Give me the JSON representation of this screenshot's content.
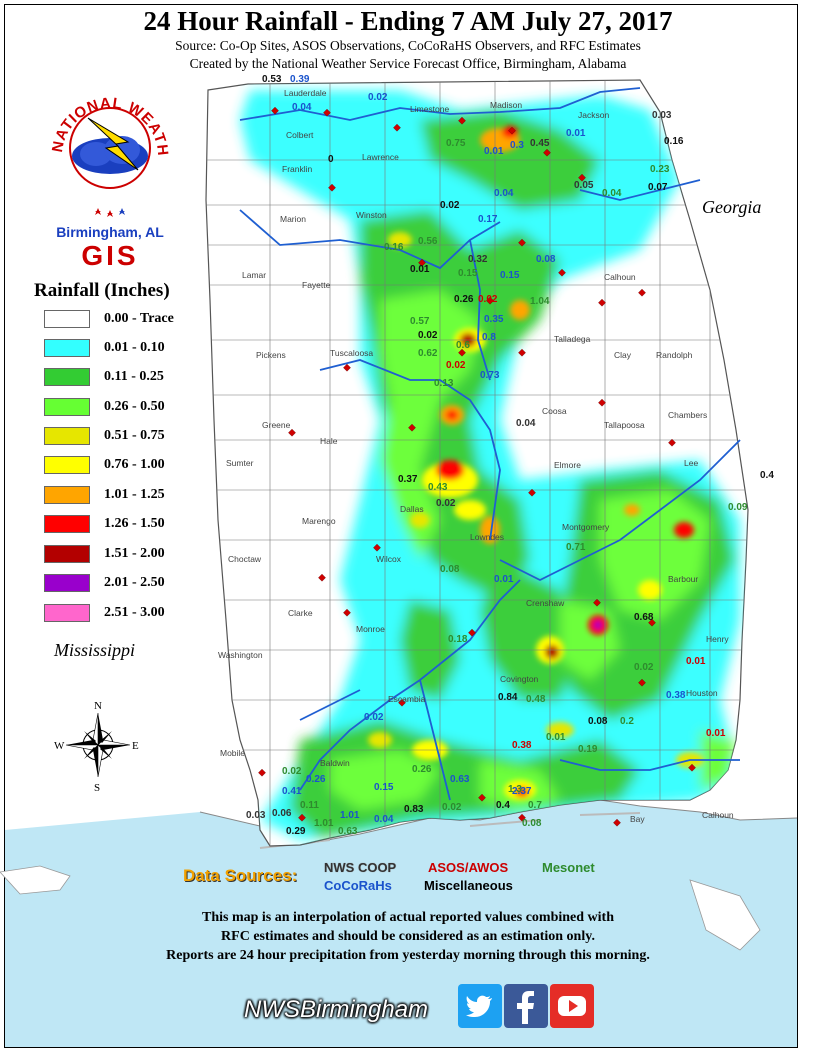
{
  "header": {
    "title": "24 Hour Rainfall - Ending 7 AM July 27, 2017",
    "source_line": "Source: Co-Op Sites, ASOS Observations, CoCoRaHS Observers, and RFC Estimates",
    "created_line": "Created by the National Weather Service Forecast Office, Birmingham, Alabama"
  },
  "logo": {
    "ring_text": "NATIONAL WEATHER SERVICE",
    "office": "Birmingham, AL",
    "gis": "GIS"
  },
  "legend": {
    "title": "Rainfall (Inches)",
    "items": [
      {
        "label": "0.00 - Trace",
        "color": "#ffffff"
      },
      {
        "label": "0.01 - 0.10",
        "color": "#33ffff"
      },
      {
        "label": "0.11 - 0.25",
        "color": "#33cc33"
      },
      {
        "label": "0.26 - 0.50",
        "color": "#66ff33"
      },
      {
        "label": "0.51 - 0.75",
        "color": "#e6e600"
      },
      {
        "label": "0.76 - 1.00",
        "color": "#ffff00"
      },
      {
        "label": "1.01 - 1.25",
        "color": "#ffa500"
      },
      {
        "label": "1.26 - 1.50",
        "color": "#ff0000"
      },
      {
        "label": "1.51 - 2.00",
        "color": "#b30000"
      },
      {
        "label": "2.01 - 2.50",
        "color": "#9900cc"
      },
      {
        "label": "2.51 - 3.00",
        "color": "#ff66cc"
      }
    ]
  },
  "map": {
    "state_labels": {
      "georgia": "Georgia",
      "mississippi": "Mississippi"
    },
    "compass": {
      "n": "N",
      "s": "S",
      "e": "E",
      "w": "W"
    },
    "counties": [
      {
        "name": "Lauderdale"
      },
      {
        "name": "Limestone"
      },
      {
        "name": "Madison"
      },
      {
        "name": "Jackson"
      },
      {
        "name": "Colbert"
      },
      {
        "name": "Lawrence"
      },
      {
        "name": "Franklin"
      },
      {
        "name": "Marion"
      },
      {
        "name": "Winston"
      },
      {
        "name": "Lamar"
      },
      {
        "name": "Fayette"
      },
      {
        "name": "Calhoun"
      },
      {
        "name": "Pickens"
      },
      {
        "name": "Tuscaloosa"
      },
      {
        "name": "Talladega"
      },
      {
        "name": "Clay"
      },
      {
        "name": "Randolph"
      },
      {
        "name": "Greene"
      },
      {
        "name": "Hale"
      },
      {
        "name": "Sumter"
      },
      {
        "name": "Coosa"
      },
      {
        "name": "Tallapoosa"
      },
      {
        "name": "Chambers"
      },
      {
        "name": "Elmore"
      },
      {
        "name": "Lee"
      },
      {
        "name": "Marengo"
      },
      {
        "name": "Choctaw"
      },
      {
        "name": "Wilcox"
      },
      {
        "name": "Montgomery"
      },
      {
        "name": "Clarke"
      },
      {
        "name": "Monroe"
      },
      {
        "name": "Crenshaw"
      },
      {
        "name": "Henry"
      },
      {
        "name": "Washington"
      },
      {
        "name": "Escambia"
      },
      {
        "name": "Covington"
      },
      {
        "name": "Houston"
      },
      {
        "name": "Mobile"
      },
      {
        "name": "Baldwin"
      },
      {
        "name": "Bay"
      },
      {
        "name": "Calhoun"
      },
      {
        "name": "Barbour"
      },
      {
        "name": "Dallas"
      },
      {
        "name": "Lowndes"
      }
    ],
    "observations": [
      {
        "v": "0.53",
        "t": "coop"
      },
      {
        "v": "0.39",
        "t": "cocorahs"
      },
      {
        "v": "0.04",
        "t": "cocorahs"
      },
      {
        "v": "0.02",
        "t": "cocorahs"
      },
      {
        "v": "0",
        "t": "misc"
      },
      {
        "v": "0.75",
        "t": "mesonet"
      },
      {
        "v": "0.01",
        "t": "cocorahs"
      },
      {
        "v": "0.3",
        "t": "cocorahs"
      },
      {
        "v": "0.45",
        "t": "coop"
      },
      {
        "v": "0.01",
        "t": "cocorahs"
      },
      {
        "v": "0.03",
        "t": "coop"
      },
      {
        "v": "0.16",
        "t": "misc"
      },
      {
        "v": "0.05",
        "t": "coop"
      },
      {
        "v": "0.04",
        "t": "mesonet"
      },
      {
        "v": "0.23",
        "t": "mesonet"
      },
      {
        "v": "0.07",
        "t": "misc"
      },
      {
        "v": "0.02",
        "t": "misc"
      },
      {
        "v": "0.04",
        "t": "cocorahs"
      },
      {
        "v": "0.17",
        "t": "cocorahs"
      },
      {
        "v": "0.08",
        "t": "cocorahs"
      },
      {
        "v": "0.16",
        "t": "mesonet"
      },
      {
        "v": "0.56",
        "t": "mesonet"
      },
      {
        "v": "0.32",
        "t": "coop"
      },
      {
        "v": "0.01",
        "t": "misc"
      },
      {
        "v": "0.15",
        "t": "mesonet"
      },
      {
        "v": "0.15",
        "t": "cocorahs"
      },
      {
        "v": "0.26",
        "t": "misc"
      },
      {
        "v": "0.02",
        "t": "asos"
      },
      {
        "v": "1.04",
        "t": "mesonet"
      },
      {
        "v": "0.57",
        "t": "mesonet"
      },
      {
        "v": "0.35",
        "t": "cocorahs"
      },
      {
        "v": "0.02",
        "t": "misc"
      },
      {
        "v": "0.6",
        "t": "mesonet"
      },
      {
        "v": "0.8",
        "t": "cocorahs"
      },
      {
        "v": "0.62",
        "t": "mesonet"
      },
      {
        "v": "0.02",
        "t": "asos"
      },
      {
        "v": "0.13",
        "t": "mesonet"
      },
      {
        "v": "0.73",
        "t": "cocorahs"
      },
      {
        "v": "0.04",
        "t": "coop"
      },
      {
        "v": "0.37",
        "t": "misc"
      },
      {
        "v": "0.43",
        "t": "mesonet"
      },
      {
        "v": "0.02",
        "t": "coop"
      },
      {
        "v": "0.4",
        "t": "misc"
      },
      {
        "v": "0.09",
        "t": "mesonet"
      },
      {
        "v": "0.71",
        "t": "mesonet"
      },
      {
        "v": "0.08",
        "t": "mesonet"
      },
      {
        "v": "0.01",
        "t": "cocorahs"
      },
      {
        "v": "0.68",
        "t": "misc"
      },
      {
        "v": "0.18",
        "t": "mesonet"
      },
      {
        "v": "0.02",
        "t": "mesonet"
      },
      {
        "v": "0.01",
        "t": "asos"
      },
      {
        "v": "0.84",
        "t": "misc"
      },
      {
        "v": "0.48",
        "t": "mesonet"
      },
      {
        "v": "0.38",
        "t": "cocorahs"
      },
      {
        "v": "0.02",
        "t": "cocorahs"
      },
      {
        "v": "0.08",
        "t": "misc"
      },
      {
        "v": "0.2",
        "t": "mesonet"
      },
      {
        "v": "0.01",
        "t": "mesonet"
      },
      {
        "v": "0.38",
        "t": "asos"
      },
      {
        "v": "0.19",
        "t": "mesonet"
      },
      {
        "v": "0.02",
        "t": "mesonet"
      },
      {
        "v": "0.26",
        "t": "cocorahs"
      },
      {
        "v": "0.41",
        "t": "cocorahs"
      },
      {
        "v": "0.11",
        "t": "mesonet"
      },
      {
        "v": "0.15",
        "t": "cocorahs"
      },
      {
        "v": "0.26",
        "t": "mesonet"
      },
      {
        "v": "0.63",
        "t": "cocorahs"
      },
      {
        "v": "1.3",
        "t": "mesonet"
      },
      {
        "v": "2.37",
        "t": "cocorahs"
      },
      {
        "v": "0.4",
        "t": "misc"
      },
      {
        "v": "0.7",
        "t": "mesonet"
      },
      {
        "v": "0.03",
        "t": "coop"
      },
      {
        "v": "0.06",
        "t": "coop"
      },
      {
        "v": "1.01",
        "t": "cocorahs"
      },
      {
        "v": "0.29",
        "t": "misc"
      },
      {
        "v": "1.01",
        "t": "mesonet"
      },
      {
        "v": "0.63",
        "t": "mesonet"
      },
      {
        "v": "0.04",
        "t": "cocorahs"
      },
      {
        "v": "0.83",
        "t": "misc"
      },
      {
        "v": "0.02",
        "t": "mesonet"
      },
      {
        "v": "0.08",
        "t": "mesonet"
      },
      {
        "v": "0.01",
        "t": "asos"
      }
    ]
  },
  "data_sources": {
    "label": "Data Sources:",
    "nws_coop": "NWS COOP",
    "asos": "ASOS/AWOS",
    "mesonet": "Mesonet",
    "cocorahs": "CoCoRaHs",
    "misc": "Miscellaneous",
    "colors": {
      "coop": "#333333",
      "asos": "#cc0000",
      "mesonet": "#2e8b2e",
      "cocorahs": "#1a53cc",
      "misc": "#000000"
    }
  },
  "disclaimer": {
    "line1": "This map is an interpolation of actual reported values combined with",
    "line2": "RFC estimates and should be considered as an estimation only.",
    "line3": "Reports are 24 hour precipitation from yesterday morning through this morning."
  },
  "footer": {
    "handle": "NWSBirmingham",
    "icons": [
      "twitter-icon",
      "facebook-icon",
      "youtube-icon"
    ]
  }
}
